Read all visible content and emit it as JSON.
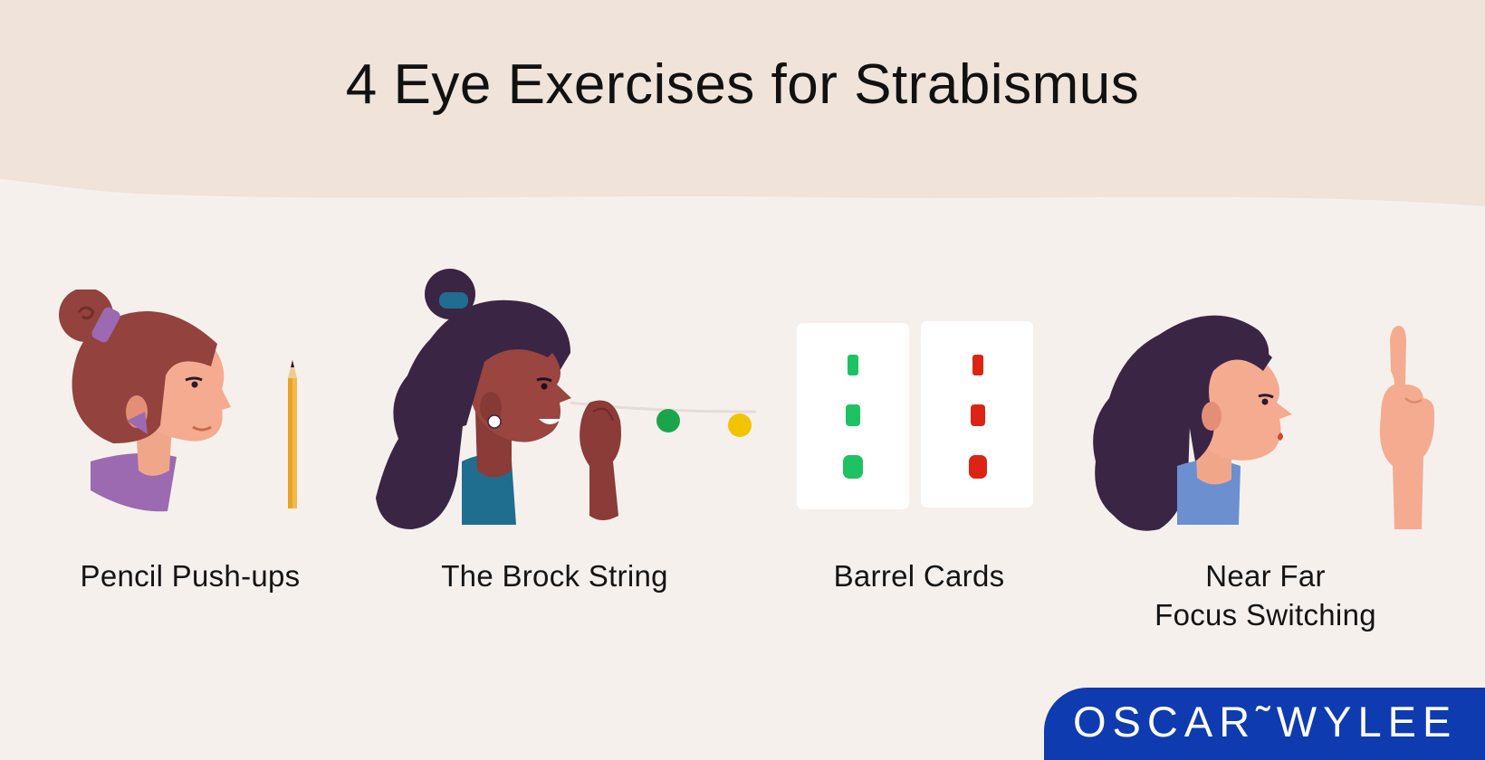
{
  "title": "4 Eye Exercises for Strabismus",
  "exercises": [
    {
      "label": "Pencil Push-ups"
    },
    {
      "label": "The Brock String"
    },
    {
      "label": "Barrel Cards"
    },
    {
      "label_line1": "Near Far",
      "label_line2": "Focus Switching"
    }
  ],
  "brand": {
    "text": "OSCAR˜WYLEE",
    "color": "#0f3bb0"
  },
  "colors": {
    "header_bg": "#efe3da",
    "page_bg": "#f6f0ed",
    "card_green": "#1ec261",
    "card_red": "#dc2414",
    "bead_green": "#1aa54a",
    "bead_yellow": "#f2c400"
  }
}
